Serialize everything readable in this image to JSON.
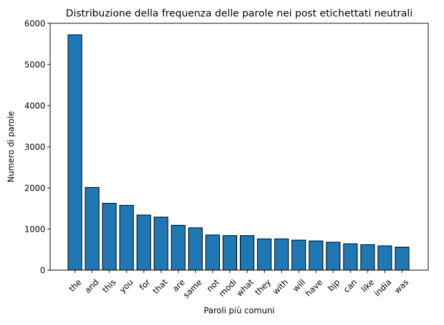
{
  "chart_data": {
    "type": "bar",
    "title": "Distribuzione della frequenza delle parole nei post etichettati neutrali",
    "xlabel": "Paroli più comuni",
    "ylabel": "Numero di parole",
    "categories": [
      "the",
      "and",
      "this",
      "you",
      "for",
      "that",
      "are",
      "same",
      "not",
      "modi",
      "what",
      "they",
      "with",
      "will",
      "have",
      "bjp",
      "can",
      "like",
      "india",
      "was"
    ],
    "values": [
      5720,
      2010,
      1625,
      1575,
      1340,
      1290,
      1090,
      1030,
      855,
      840,
      840,
      760,
      760,
      730,
      710,
      680,
      640,
      620,
      590,
      560
    ],
    "ylim": [
      0,
      6000
    ],
    "yticks": [
      0,
      1000,
      2000,
      3000,
      4000,
      5000,
      6000
    ],
    "grid": false,
    "colors": {
      "bar_fill": "#1f77b4",
      "bar_edge": "#000000"
    }
  }
}
